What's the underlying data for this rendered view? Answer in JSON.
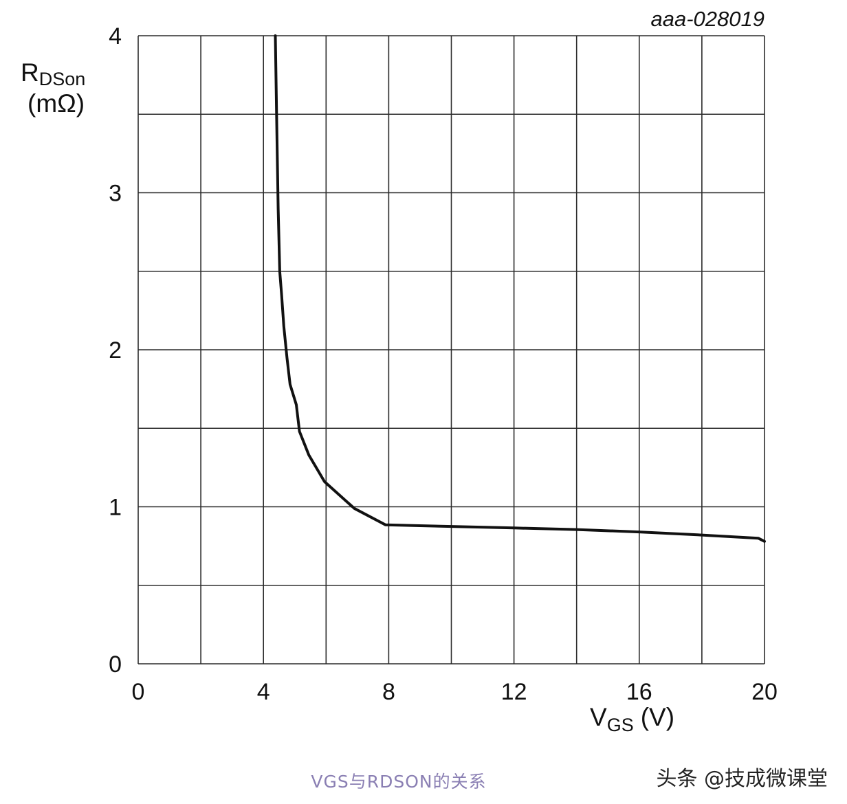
{
  "chart_data": {
    "type": "line",
    "figure_code": "aaa-028019",
    "ylabel": {
      "main": "R",
      "sub": "DSon",
      "unit": "(mΩ)"
    },
    "xlabel": {
      "main": "V",
      "sub": "GS",
      "unit": "(V)"
    },
    "xlim": [
      0,
      20
    ],
    "ylim": [
      0,
      4
    ],
    "x_ticks": [
      0,
      4,
      8,
      12,
      16,
      20
    ],
    "x_tick_labels": [
      "0",
      "4",
      "8",
      "12",
      "16",
      "20"
    ],
    "y_ticks": [
      0,
      1,
      2,
      3,
      4
    ],
    "y_tick_labels": [
      "0",
      "1",
      "2",
      "3",
      "4"
    ],
    "x_grid_step": 2,
    "y_grid_step": 0.5,
    "grid": true,
    "line_color": "#111111",
    "series": [
      {
        "x": [
          4.38,
          4.42,
          4.47,
          4.52,
          4.58,
          4.65,
          4.75,
          4.85,
          5.05,
          5.15,
          5.45,
          5.95,
          6.9,
          7.9,
          10,
          12,
          14,
          16,
          18,
          19.8,
          20
        ],
        "y": [
          4.0,
          3.5,
          2.9,
          2.5,
          2.35,
          2.15,
          1.95,
          1.78,
          1.65,
          1.48,
          1.33,
          1.16,
          0.99,
          0.885,
          0.875,
          0.865,
          0.855,
          0.84,
          0.82,
          0.8,
          0.78
        ]
      }
    ]
  },
  "caption": "VGS与RDSON的关系",
  "watermark": "头条 @技成微课堂"
}
